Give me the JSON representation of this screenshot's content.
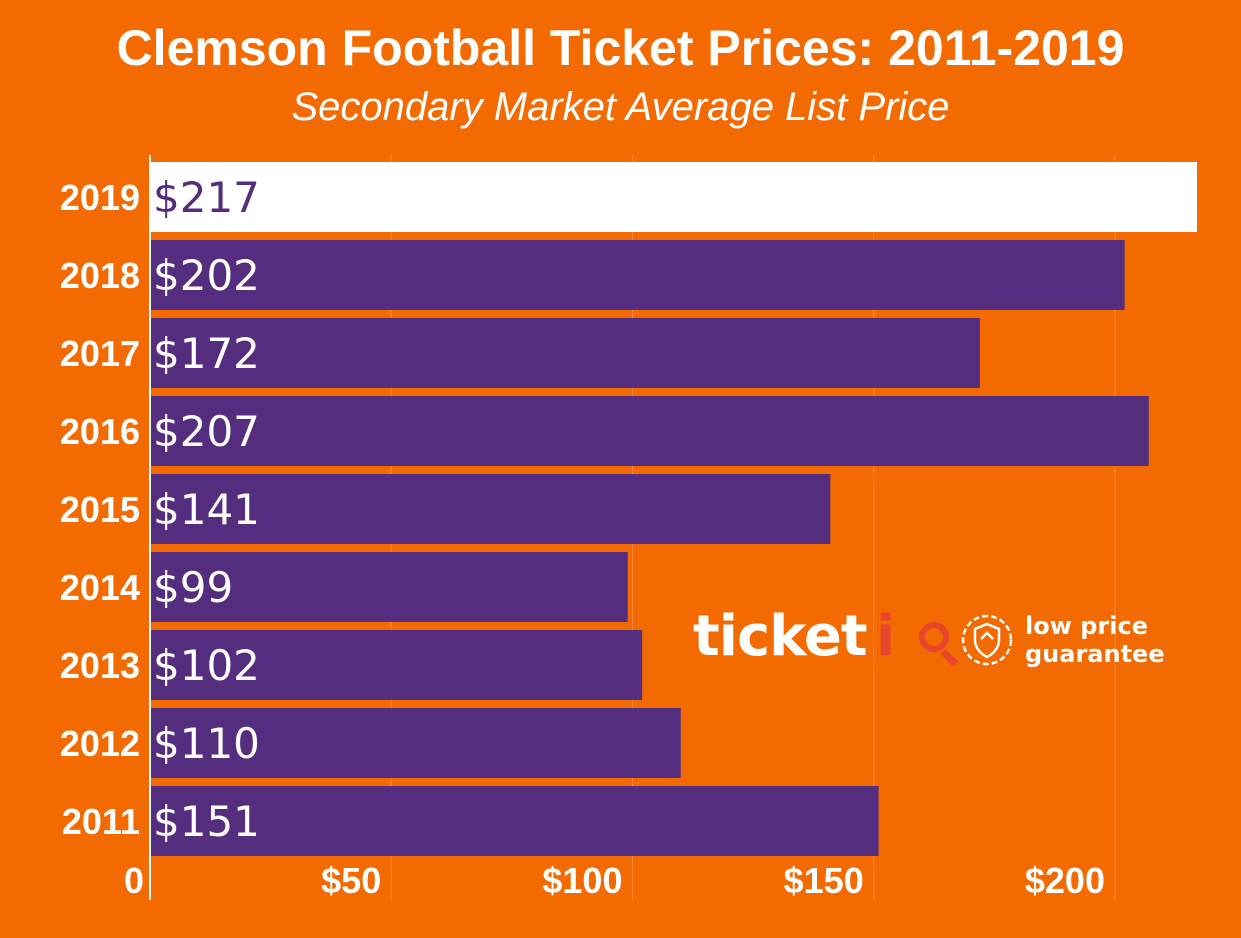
{
  "chart_data": {
    "type": "bar",
    "orientation": "horizontal",
    "title": "Clemson Football Ticket Prices: 2011-2019",
    "subtitle": "Secondary Market Average List Price",
    "categories": [
      "2019",
      "2018",
      "2017",
      "2016",
      "2015",
      "2014",
      "2013",
      "2012",
      "2011"
    ],
    "values": [
      217,
      202,
      172,
      207,
      141,
      99,
      102,
      110,
      151
    ],
    "data_labels": [
      "$217",
      "$202",
      "$172",
      "$207",
      "$141",
      "$99",
      "$102",
      "$110",
      "$151"
    ],
    "highlight_category": "2019",
    "x_ticks": [
      0,
      50,
      100,
      150,
      200
    ],
    "x_tick_labels": [
      "0",
      "$50",
      "$100",
      "$150",
      "$200"
    ],
    "xlim": [
      0,
      217
    ],
    "grid": true,
    "legend": "none"
  },
  "colors": {
    "background": "#f26a00",
    "bar": "#542d7e",
    "highlight_bar": "#ffffff",
    "highlight_label": "#542d7e",
    "label": "#ffffff",
    "logo_accent": "#e8452c"
  },
  "logo": {
    "name": "ticket",
    "name_suffix": "iQ",
    "tagline_1": "low price",
    "tagline_2": "guarantee",
    "icon": "shield-badge-icon"
  }
}
